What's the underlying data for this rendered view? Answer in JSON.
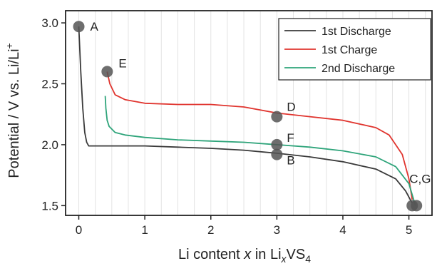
{
  "chart_data": {
    "type": "line",
    "xlabel": {
      "before": "Li content ",
      "italic": "x",
      "mid": " in Li",
      "sub": "x",
      "after": "VS",
      "sub2": "4"
    },
    "ylabel": {
      "main": "Potential / V vs. Li/Li",
      "sup": "+"
    },
    "xlim": [
      -0.2,
      5.35
    ],
    "ylim": [
      1.42,
      3.1
    ],
    "xticks": [
      0,
      1,
      2,
      3,
      4,
      5
    ],
    "yticks": [
      1.5,
      2.0,
      2.5,
      3.0
    ],
    "xtick_labels": [
      "0",
      "1",
      "2",
      "3",
      "4",
      "5"
    ],
    "ytick_labels": [
      "1.5",
      "2.0",
      "2.5",
      "3.0"
    ],
    "grid": "vertical minor gridlines every 0.25",
    "legend_position": "top-right",
    "series": [
      {
        "name": "1st Discharge",
        "color": "#3a3a3a",
        "x": [
          0,
          0.03,
          0.06,
          0.09,
          0.12,
          0.15,
          0.5,
          1.0,
          1.5,
          2.0,
          2.5,
          3.0,
          3.5,
          4.0,
          4.5,
          4.8,
          4.95,
          5.05
        ],
        "y": [
          2.97,
          2.6,
          2.3,
          2.1,
          2.02,
          1.99,
          1.99,
          1.99,
          1.98,
          1.97,
          1.955,
          1.93,
          1.9,
          1.86,
          1.8,
          1.72,
          1.62,
          1.52
        ]
      },
      {
        "name": "1st Charge",
        "color": "#e0342e",
        "x": [
          5.05,
          5.0,
          4.9,
          4.7,
          4.5,
          4.0,
          3.5,
          3.0,
          2.5,
          2.0,
          1.5,
          1.0,
          0.7,
          0.55,
          0.47,
          0.43
        ],
        "y": [
          1.55,
          1.72,
          1.92,
          2.08,
          2.14,
          2.2,
          2.23,
          2.26,
          2.31,
          2.33,
          2.33,
          2.34,
          2.37,
          2.41,
          2.5,
          2.6
        ]
      },
      {
        "name": "2nd Discharge",
        "color": "#2ea47a",
        "x": [
          0.4,
          0.41,
          0.43,
          0.46,
          0.55,
          0.7,
          1.0,
          1.5,
          2.0,
          2.5,
          3.0,
          3.5,
          4.0,
          4.5,
          4.8,
          5.0,
          5.1
        ],
        "y": [
          2.4,
          2.3,
          2.2,
          2.15,
          2.1,
          2.08,
          2.06,
          2.04,
          2.03,
          2.02,
          2.0,
          1.98,
          1.95,
          1.9,
          1.82,
          1.68,
          1.5
        ]
      }
    ],
    "markers": [
      {
        "label": "A",
        "x": 0.0,
        "y": 2.97
      },
      {
        "label": "E",
        "x": 0.43,
        "y": 2.6
      },
      {
        "label": "D",
        "x": 3.0,
        "y": 2.23
      },
      {
        "label": "F",
        "x": 3.0,
        "y": 2.0
      },
      {
        "label": "B",
        "x": 3.0,
        "y": 1.92
      },
      {
        "label": "C,G",
        "x": 5.05,
        "y": 1.5
      }
    ],
    "marker_color": "#555555"
  }
}
